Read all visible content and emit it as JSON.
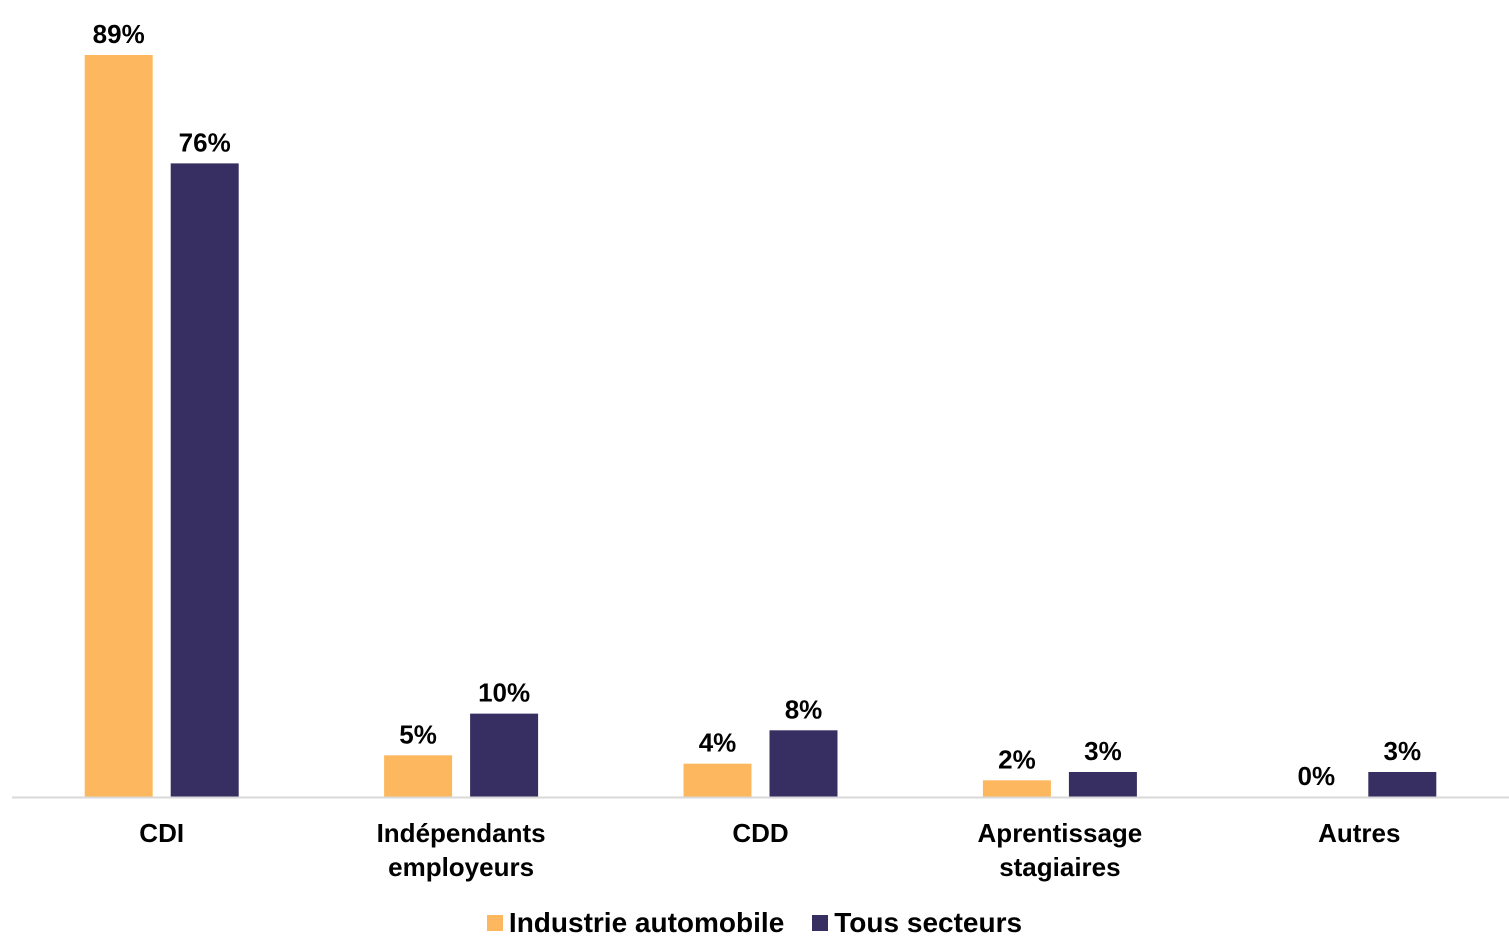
{
  "chart_data": {
    "type": "bar",
    "categories": [
      [
        "CDI"
      ],
      [
        "Indépendants",
        "employeurs"
      ],
      [
        "CDD"
      ],
      [
        "Aprentissage",
        "stagiaires"
      ],
      [
        "Autres"
      ]
    ],
    "series": [
      {
        "name": "Industrie automobile",
        "color": "#FDB85F",
        "values": [
          89,
          5,
          4,
          2,
          0
        ],
        "labels": [
          "89%",
          "5%",
          "4%",
          "2%",
          "0%"
        ]
      },
      {
        "name": "Tous secteurs",
        "color": "#372F61",
        "values": [
          76,
          10,
          8,
          3,
          3
        ],
        "labels": [
          "76%",
          "10%",
          "8%",
          "3%",
          "3%"
        ]
      }
    ],
    "ylim": [
      0,
      89
    ],
    "unit": "%",
    "grid": false,
    "axis_color": "#D9D9D9",
    "legend": "bottom"
  }
}
